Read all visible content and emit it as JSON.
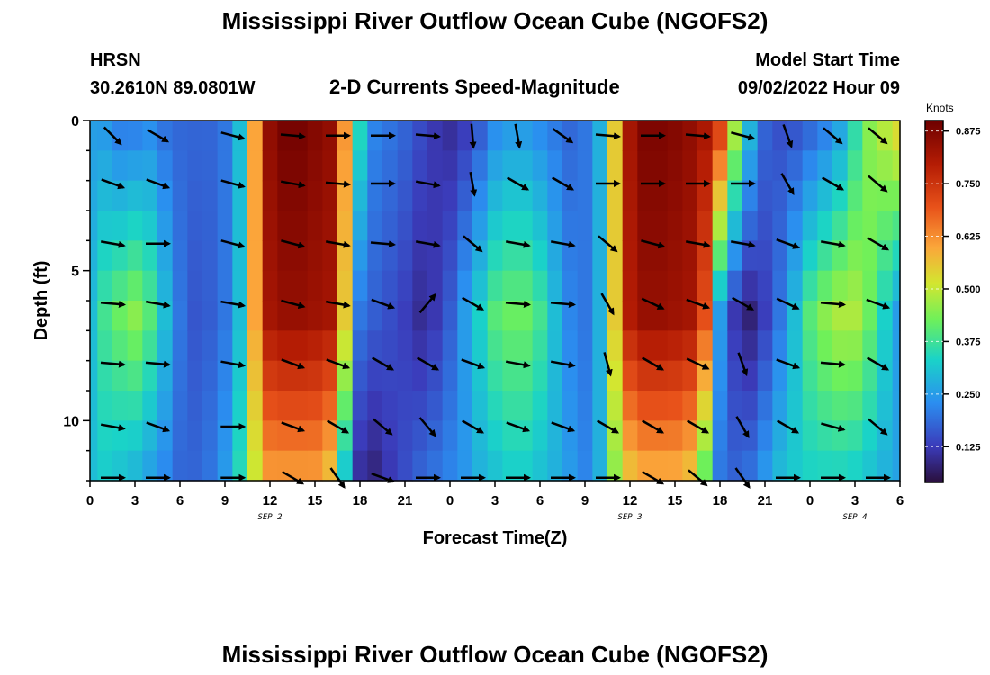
{
  "header": {
    "title": "Mississippi River Outflow Ocean Cube (NGOFS2)",
    "station_code": "HRSN",
    "station_coords": "30.2610N  89.0801W",
    "subtitle": "2-D Currents Speed-Magnitude",
    "model_start_label": "Model Start Time",
    "model_start_value": "09/02/2022 Hour 09"
  },
  "footer": {
    "title": "Mississippi River Outflow Ocean Cube (NGOFS2)"
  },
  "chart_data": {
    "type": "heatmap",
    "xlabel": "Forecast Time(Z)",
    "ylabel": "Depth (ft)",
    "x_start_hours": 0,
    "x_end_hours": 54,
    "ylim": [
      0,
      12
    ],
    "x_tick_labels": [
      "0",
      "3",
      "6",
      "9",
      "12",
      "15",
      "18",
      "21",
      "0",
      "3",
      "6",
      "9",
      "12",
      "15",
      "18",
      "21",
      "0",
      "3",
      "6"
    ],
    "y_ticks": [
      0,
      5,
      10
    ],
    "date_labels": [
      {
        "text": "SEP 2",
        "hour": 12
      },
      {
        "text": "SEP 3",
        "hour": 36
      },
      {
        "text": "SEP 4",
        "hour": 51
      }
    ],
    "colorbar": {
      "title": "Knots",
      "min": 0.04,
      "max": 0.9,
      "ticks": [
        0.125,
        0.25,
        0.375,
        0.5,
        0.625,
        0.75,
        0.875
      ],
      "tick_labels": [
        "0.125",
        "0.250",
        "0.375",
        "0.500",
        "0.625",
        "0.750",
        "0.875"
      ]
    },
    "time_hours": [
      0,
      1,
      2,
      3,
      4,
      5,
      6,
      7,
      8,
      9,
      10,
      11,
      12,
      13,
      14,
      15,
      16,
      17,
      18,
      19,
      20,
      21,
      22,
      23,
      24,
      25,
      26,
      27,
      28,
      29,
      30,
      31,
      32,
      33,
      34,
      35,
      36,
      37,
      38,
      39,
      40,
      41,
      42,
      43,
      44,
      45,
      46,
      47,
      48,
      49,
      50,
      51,
      52,
      53,
      54
    ],
    "depth_levels_ft": [
      0.5,
      1.5,
      2.5,
      3.5,
      4.5,
      5.5,
      6.5,
      7.5,
      8.5,
      9.5,
      10.5,
      11.5
    ],
    "speed_profile_surface": [
      0.25,
      0.24,
      0.2,
      0.2,
      0.22,
      0.19,
      0.18,
      0.18,
      0.18,
      0.2,
      0.3,
      0.6,
      0.85,
      0.89,
      0.89,
      0.87,
      0.85,
      0.62,
      0.35,
      0.22,
      0.2,
      0.18,
      0.15,
      0.12,
      0.1,
      0.12,
      0.16,
      0.22,
      0.24,
      0.24,
      0.22,
      0.2,
      0.18,
      0.2,
      0.28,
      0.55,
      0.82,
      0.88,
      0.88,
      0.87,
      0.85,
      0.82,
      0.75,
      0.5,
      0.3,
      0.18,
      0.15,
      0.15,
      0.17,
      0.2,
      0.25,
      0.35,
      0.45,
      0.5,
      0.55
    ],
    "speed_profile_mid": [
      0.3,
      0.38,
      0.42,
      0.45,
      0.4,
      0.3,
      0.2,
      0.16,
      0.17,
      0.2,
      0.3,
      0.6,
      0.82,
      0.84,
      0.84,
      0.83,
      0.82,
      0.55,
      0.2,
      0.17,
      0.15,
      0.13,
      0.1,
      0.12,
      0.17,
      0.25,
      0.33,
      0.4,
      0.42,
      0.42,
      0.38,
      0.3,
      0.22,
      0.2,
      0.28,
      0.55,
      0.8,
      0.84,
      0.84,
      0.83,
      0.82,
      0.7,
      0.25,
      0.12,
      0.08,
      0.13,
      0.2,
      0.3,
      0.4,
      0.45,
      0.48,
      0.48,
      0.42,
      0.33,
      0.25
    ],
    "speed_profile_bottom": [
      0.3,
      0.32,
      0.3,
      0.28,
      0.25,
      0.22,
      0.18,
      0.18,
      0.2,
      0.25,
      0.35,
      0.5,
      0.6,
      0.6,
      0.6,
      0.6,
      0.55,
      0.3,
      0.1,
      0.08,
      0.12,
      0.15,
      0.18,
      0.2,
      0.22,
      0.24,
      0.28,
      0.3,
      0.32,
      0.32,
      0.3,
      0.28,
      0.25,
      0.22,
      0.28,
      0.45,
      0.55,
      0.58,
      0.58,
      0.58,
      0.55,
      0.4,
      0.2,
      0.18,
      0.2,
      0.25,
      0.3,
      0.32,
      0.33,
      0.33,
      0.33,
      0.32,
      0.3,
      0.28,
      0.26
    ],
    "vector_times_hours": [
      1.5,
      4.5,
      9.5,
      13.5,
      16.5,
      19.5,
      22.5,
      25.5,
      28.5,
      31.5,
      34.5,
      37.5,
      40.5,
      43.5,
      46.5,
      49.5,
      52.5
    ],
    "vector_depths_ft": [
      0.5,
      2.1,
      4.1,
      6.1,
      8.1,
      10.2,
      11.9
    ],
    "vector_angles_deg": [
      [
        -45,
        -30,
        -15,
        -5,
        0,
        0,
        -5,
        -85,
        -80,
        -35,
        -5,
        0,
        -5,
        -15,
        -70,
        -40,
        -40
      ],
      [
        -20,
        -20,
        -15,
        -10,
        -5,
        0,
        -10,
        -80,
        -30,
        -30,
        0,
        0,
        0,
        0,
        -60,
        -30,
        -40
      ],
      [
        -10,
        0,
        -15,
        -15,
        -10,
        -5,
        -10,
        -40,
        -10,
        -10,
        -40,
        -15,
        -10,
        -10,
        -20,
        -10,
        -30
      ],
      [
        -5,
        -10,
        -10,
        -15,
        -10,
        -20,
        50,
        -30,
        -5,
        -5,
        -60,
        -25,
        -20,
        -30,
        -25,
        -5,
        -20
      ],
      [
        -5,
        -5,
        -10,
        -20,
        -20,
        -30,
        -30,
        -20,
        -10,
        -10,
        -75,
        -30,
        -25,
        -70,
        -20,
        -5,
        -30
      ],
      [
        -10,
        -20,
        0,
        -20,
        -30,
        -40,
        -50,
        -30,
        -20,
        -20,
        -30,
        -30,
        -30,
        -60,
        -30,
        -15,
        -40
      ],
      [
        0,
        0,
        0,
        -30,
        -55,
        -20,
        0,
        0,
        0,
        0,
        0,
        -30,
        -40,
        -55,
        0,
        0,
        0
      ]
    ]
  }
}
